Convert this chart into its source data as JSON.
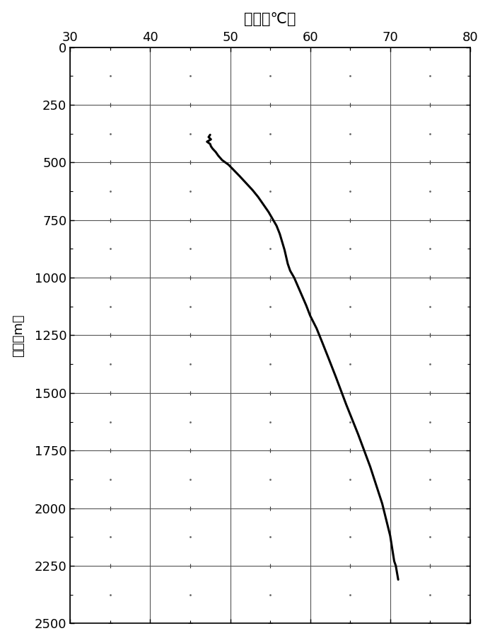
{
  "title": "温度（℃）",
  "ylabel": "垂深（m）",
  "xlim": [
    30,
    80
  ],
  "ylim": [
    2500,
    0
  ],
  "xticks": [
    30,
    40,
    50,
    60,
    70,
    80
  ],
  "yticks": [
    0,
    250,
    500,
    750,
    1000,
    1250,
    1500,
    1750,
    2000,
    2250,
    2500
  ],
  "background_color": "#ffffff",
  "line_color": "#000000",
  "line_width": 2.2,
  "curve_x": [
    47.5,
    47.3,
    47.6,
    47.1,
    47.5,
    47.6,
    47.8,
    48.2,
    48.5,
    49.0,
    49.8,
    50.5,
    51.2,
    52.0,
    52.8,
    53.5,
    54.2,
    54.8,
    55.3,
    55.8,
    56.2,
    56.5,
    56.8,
    57.0,
    57.2,
    57.5,
    58.0,
    58.5,
    59.0,
    59.5,
    60.0,
    60.8,
    61.5,
    62.3,
    63.2,
    64.5,
    66.0,
    67.5,
    69.0,
    70.0,
    70.5,
    70.7,
    70.8,
    71.0
  ],
  "curve_y": [
    380,
    390,
    400,
    410,
    420,
    430,
    440,
    455,
    470,
    490,
    510,
    535,
    560,
    590,
    620,
    650,
    685,
    715,
    745,
    775,
    810,
    845,
    880,
    910,
    940,
    970,
    1000,
    1040,
    1080,
    1120,
    1165,
    1220,
    1280,
    1350,
    1430,
    1550,
    1680,
    1820,
    1980,
    2120,
    2230,
    2250,
    2270,
    2310
  ]
}
